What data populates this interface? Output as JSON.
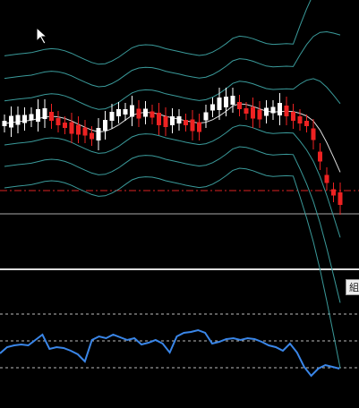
{
  "indicator_tag": {
    "label": "組"
  }
}
